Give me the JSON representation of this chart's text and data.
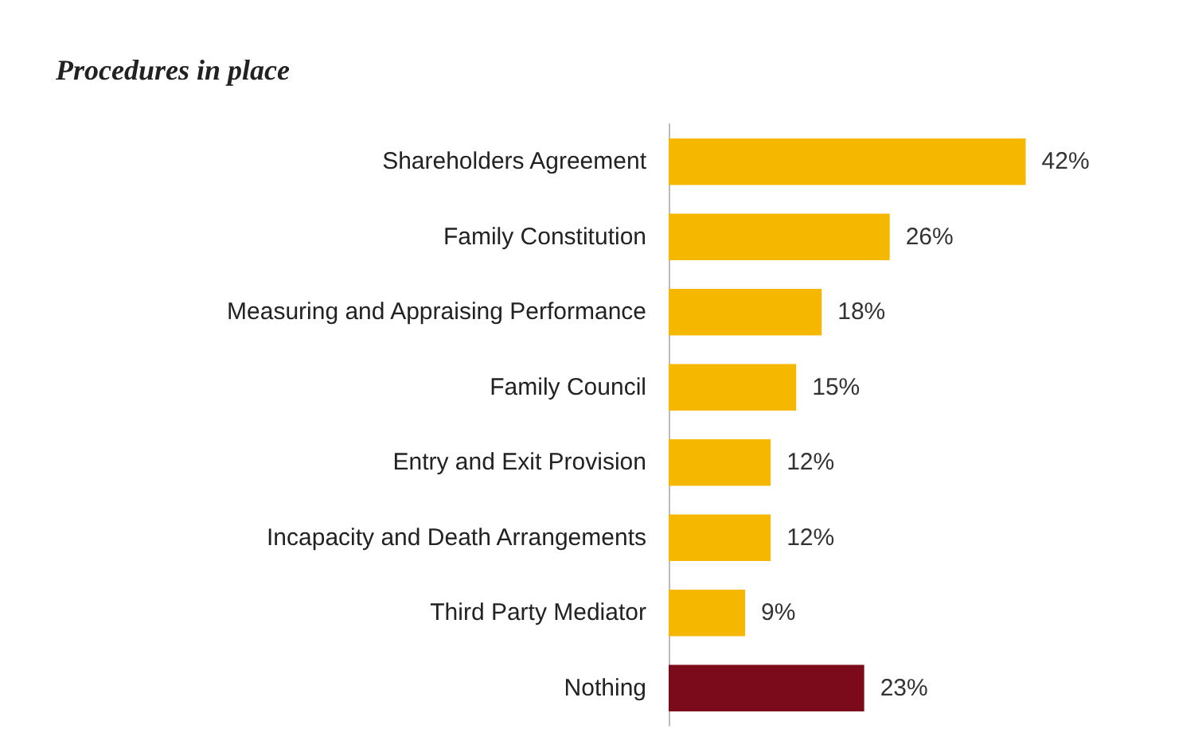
{
  "chart_data": {
    "type": "bar",
    "orientation": "horizontal",
    "title": "Procedures in place",
    "categories": [
      "Shareholders Agreement",
      "Family Constitution",
      "Measuring and Appraising Performance",
      "Family Council",
      "Entry and Exit Provision",
      "Incapacity and Death Arrangements",
      "Third Party Mediator",
      "Nothing"
    ],
    "values": [
      42,
      26,
      18,
      15,
      12,
      12,
      9,
      23
    ],
    "value_labels": [
      "42%",
      "26%",
      "18%",
      "15%",
      "12%",
      "12%",
      "9%",
      "23%"
    ],
    "colors": [
      "#f5b700",
      "#f5b700",
      "#f5b700",
      "#f5b700",
      "#f5b700",
      "#f5b700",
      "#f5b700",
      "#7b0a1a"
    ]
  }
}
